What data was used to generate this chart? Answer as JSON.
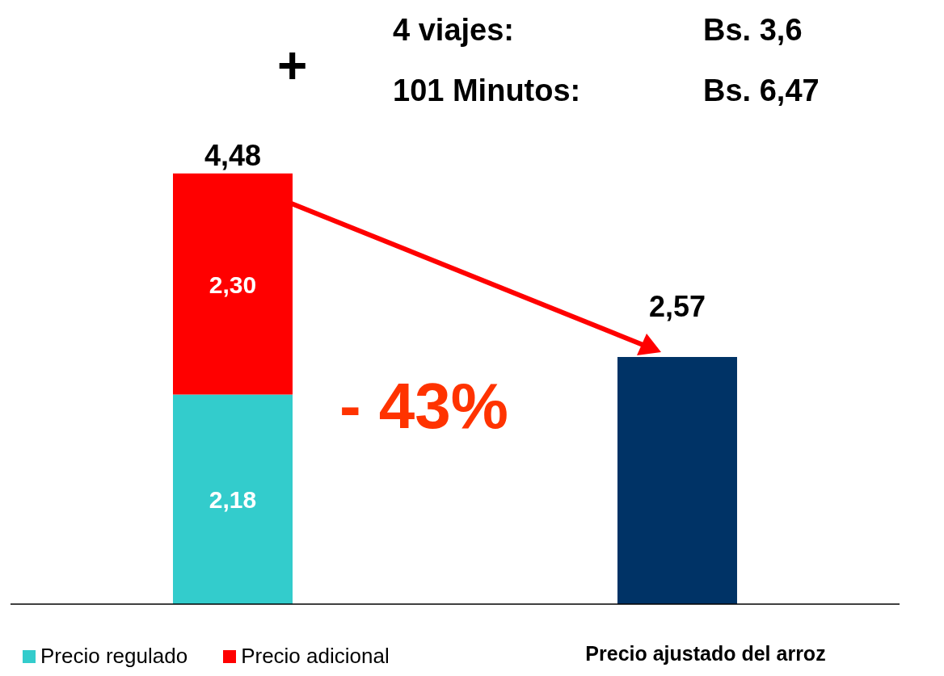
{
  "chart_data": {
    "type": "bar",
    "stacked": true,
    "categories": [
      null,
      "Precio ajustado del arroz"
    ],
    "series": [
      {
        "name": "Precio regulado",
        "color": "#33cccc",
        "values": [
          2.18,
          null
        ],
        "value_labels": [
          "2,18",
          null
        ]
      },
      {
        "name": "Precio adicional",
        "color": "#ff0000",
        "values": [
          2.3,
          null
        ],
        "value_labels": [
          "2,30",
          null
        ]
      },
      {
        "color": "#003366",
        "values": [
          null,
          2.57
        ],
        "value_labels": [
          null,
          "2,57"
        ]
      }
    ],
    "totals": [
      "4,48",
      null
    ],
    "legend": "bottom left",
    "annotations": [
      "+",
      "4 viajes:",
      "Bs. 3,6",
      "101 Minutos:",
      "Bs. 6,47",
      "- 43%"
    ]
  }
}
